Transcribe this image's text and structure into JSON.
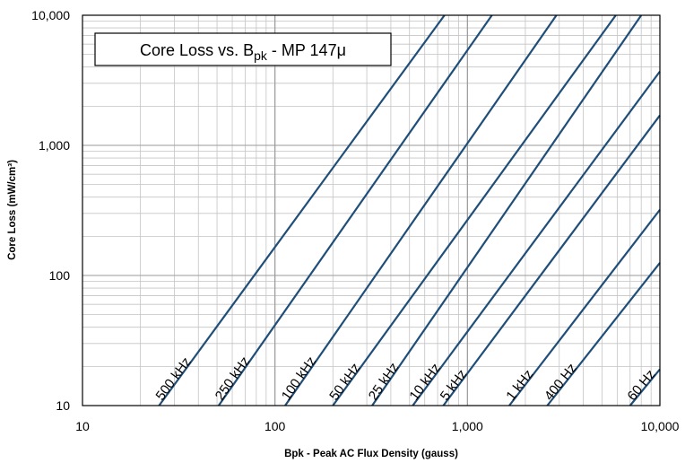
{
  "chart_data": {
    "type": "line",
    "title_main": "Core Loss vs. B",
    "title_sub": "pk",
    "title_tail": " - MP 147μ",
    "xlabel": "Bpk - Peak AC Flux Density (gauss)",
    "ylabel": "Core Loss (mW/cm³)",
    "x_scale": "log",
    "y_scale": "log",
    "xlim": [
      10,
      10000
    ],
    "ylim": [
      10,
      10000
    ],
    "grid": true,
    "x_ticks": [
      {
        "value": 10,
        "label": "10"
      },
      {
        "value": 100,
        "label": "100"
      },
      {
        "value": 1000,
        "label": "1,000"
      },
      {
        "value": 10000,
        "label": "10,000"
      }
    ],
    "y_ticks": [
      {
        "value": 10,
        "label": "10"
      },
      {
        "value": 100,
        "label": "100"
      },
      {
        "value": 1000,
        "label": "1,000"
      },
      {
        "value": 10000,
        "label": "10,000"
      }
    ],
    "line_color": "#1f4e79",
    "series": [
      {
        "name": "500 kHz",
        "x": [
          25,
          760
        ],
        "y": [
          10,
          10000
        ]
      },
      {
        "name": "250 kHz",
        "x": [
          51,
          1340
        ],
        "y": [
          10,
          10000
        ]
      },
      {
        "name": "100 kHz",
        "x": [
          113,
          2900
        ],
        "y": [
          10,
          10000
        ]
      },
      {
        "name": "50 kHz",
        "x": [
          200,
          5900
        ],
        "y": [
          10,
          10000
        ]
      },
      {
        "name": "25 kHz",
        "x": [
          320,
          8000
        ],
        "y": [
          10,
          10000
        ]
      },
      {
        "name": "10 kHz",
        "x": [
          520,
          10000
        ],
        "y": [
          10,
          3700
        ]
      },
      {
        "name": "5 kHz",
        "x": [
          750,
          10000
        ],
        "y": [
          10,
          1700
        ]
      },
      {
        "name": "1 kHz",
        "x": [
          1650,
          10000
        ],
        "y": [
          10,
          320
        ]
      },
      {
        "name": "400 Hz",
        "x": [
          2600,
          10000
        ],
        "y": [
          10,
          125
        ]
      },
      {
        "name": "60 Hz",
        "x": [
          7000,
          10000
        ],
        "y": [
          10,
          19
        ]
      }
    ]
  }
}
